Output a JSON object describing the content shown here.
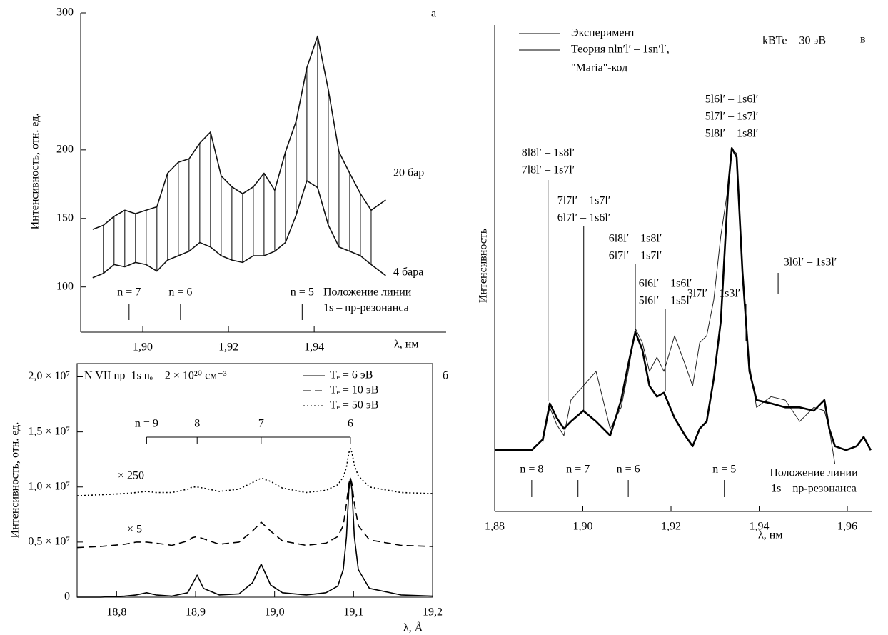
{
  "chart_data": [
    {
      "type": "line",
      "panel_label": "а",
      "ylabel": "Интенсивность, отн. ед.",
      "xlabel": "λ, нм",
      "xlim": [
        1.8855,
        1.9708
      ],
      "ylim": [
        67,
        300
      ],
      "yticks": [
        100,
        150,
        200,
        300
      ],
      "xticks": [
        {
          "value": 1.9,
          "label": "1,90"
        },
        {
          "value": 1.92,
          "label": "1,92"
        },
        {
          "value": 1.94,
          "label": "1,94"
        }
      ],
      "x": [
        1.8883,
        1.8908,
        1.8933,
        1.8958,
        1.8983,
        1.9008,
        1.9033,
        1.9058,
        1.9083,
        1.9108,
        1.9133,
        1.9158,
        1.9183,
        1.9208,
        1.9233,
        1.9258,
        1.9283,
        1.9308,
        1.9333,
        1.9358,
        1.9383,
        1.9408,
        1.9433,
        1.9458,
        1.9483,
        1.9508,
        1.9533,
        1.9567
      ],
      "series": [
        {
          "name": "20 бар",
          "color": "#111111",
          "values": [
            142,
            145,
            151.5,
            156,
            153.5,
            156,
            158.5,
            183,
            191,
            193.5,
            205,
            213,
            181,
            173,
            168,
            173,
            183,
            170.5,
            198.5,
            221,
            260,
            283,
            244,
            198.5,
            183,
            168,
            156,
            163.5
          ]
        },
        {
          "name": "4 бара",
          "color": "#111111",
          "values": [
            106.7,
            109.9,
            116.3,
            114.7,
            117.9,
            116.3,
            111.5,
            119.6,
            122.8,
            126,
            132.4,
            129.2,
            122.8,
            119.6,
            117.9,
            122.8,
            122.8,
            126,
            132.4,
            152.5,
            177.5,
            172.5,
            145.2,
            129.2,
            126,
            122.8,
            116.3,
            108.3
          ]
        }
      ],
      "markers": [
        {
          "label": "n = 7",
          "x": 1.8968
        },
        {
          "label": "n = 6",
          "x": 1.9088
        },
        {
          "label": "n = 5",
          "x": 1.9372
        }
      ],
      "marker_note": [
        "Положение линии",
        "1s – np-резонанса"
      ]
    },
    {
      "type": "line",
      "panel_label": "б",
      "title": "N VII np–1s   nₑ = 2 × 10²⁰ см⁻³",
      "ylabel": "Интенсивность, отн. ед.",
      "xlabel": "λ, Å",
      "frame": true,
      "xlim": [
        18.75,
        19.2
      ],
      "ylim": [
        0,
        21200000
      ],
      "yticks": [
        0,
        {
          "value": 5000000,
          "label": "0,5 × 10⁷"
        },
        {
          "value": 10000000,
          "label": "1,0 × 10⁷"
        },
        {
          "value": 15000000,
          "label": "1,5 × 10⁷"
        },
        {
          "value": 20000000,
          "label": "2,0 × 10⁷"
        }
      ],
      "xticks": [
        {
          "value": 18.8,
          "label": "18,8"
        },
        {
          "value": 18.9,
          "label": "18,9"
        },
        {
          "value": 19.0,
          "label": "19,0"
        },
        {
          "value": 19.1,
          "label": "19,1"
        },
        {
          "value": 19.2,
          "label": "19,2"
        }
      ],
      "x": [
        18.75,
        18.78,
        18.81,
        18.825,
        18.838,
        18.85,
        18.87,
        18.89,
        18.896,
        18.902,
        18.91,
        18.93,
        18.955,
        18.972,
        18.983,
        18.995,
        19.01,
        19.04,
        19.065,
        19.08,
        19.087,
        19.091,
        19.094,
        19.096,
        19.098,
        19.101,
        19.106,
        19.12,
        19.16,
        19.2
      ],
      "series": [
        {
          "name": "Tₑ = 6 эВ",
          "color": "#000000",
          "dash": "solid",
          "values": [
            0,
            0,
            100000,
            200000,
            400000,
            200000,
            100000,
            400000,
            1200000,
            2000000,
            800000,
            200000,
            300000,
            1300000,
            3000000,
            1100000,
            400000,
            200000,
            400000,
            1000000,
            2500000,
            5500000,
            9700000,
            10800000,
            9700000,
            5500000,
            2500000,
            800000,
            200000,
            100000
          ]
        },
        {
          "name": "Tₑ = 10 эВ",
          "color": "#000000",
          "dash": "dashed",
          "values": [
            4500000,
            4600000,
            4800000,
            5000000,
            5000000,
            4900000,
            4700000,
            5100000,
            5400000,
            5500000,
            5300000,
            4800000,
            5000000,
            6000000,
            6800000,
            6000000,
            5100000,
            4700000,
            4900000,
            5500000,
            6500000,
            8500000,
            10300000,
            10800000,
            10300000,
            8500000,
            6500000,
            5200000,
            4700000,
            4600000
          ]
        },
        {
          "name": "Tₑ = 50 эВ",
          "color": "#000000",
          "dash": "dotted",
          "values": [
            9200000,
            9300000,
            9400000,
            9500000,
            9600000,
            9500000,
            9500000,
            9800000,
            10000000,
            10000000,
            9900000,
            9600000,
            9800000,
            10400000,
            10800000,
            10500000,
            9900000,
            9500000,
            9700000,
            10200000,
            10900000,
            11800000,
            13100000,
            13500000,
            13100000,
            12000000,
            11000000,
            10000000,
            9500000,
            9400000
          ]
        }
      ],
      "annotations": [
        "× 250",
        "× 5"
      ],
      "bracket": [
        {
          "label": "n = 9",
          "x": 18.838
        },
        {
          "label": "8",
          "x": 18.902
        },
        {
          "label": "7",
          "x": 18.983
        },
        {
          "label": "6",
          "x": 19.096
        }
      ]
    },
    {
      "type": "line",
      "panel_label": "в",
      "ylabel": "Интенсивность",
      "xlabel": "λ, нм",
      "xlim": [
        1.88,
        1.9655
      ],
      "ylim": [
        0,
        100
      ],
      "xticks": [
        {
          "value": 1.88,
          "label": "1,88"
        },
        {
          "value": 1.9,
          "label": "1,90"
        },
        {
          "value": 1.92,
          "label": "1,92"
        },
        {
          "value": 1.94,
          "label": "1,94"
        },
        {
          "value": 1.96,
          "label": "1,96"
        }
      ],
      "x": [
        1.88,
        1.8884,
        1.8909,
        1.8925,
        1.8941,
        1.8957,
        1.8973,
        1.9001,
        1.903,
        1.9062,
        1.9087,
        1.9103,
        1.9119,
        1.9135,
        1.9151,
        1.9168,
        1.9184,
        1.9208,
        1.9232,
        1.9249,
        1.9265,
        1.9281,
        1.9297,
        1.9313,
        1.933,
        1.9338,
        1.9349,
        1.9362,
        1.9378,
        1.9394,
        1.9427,
        1.9459,
        1.9492,
        1.9524,
        1.9548,
        1.9559,
        1.9572,
        1.9597,
        1.9621,
        1.9637,
        1.9653
      ],
      "series": [
        {
          "name": "Эксперимент",
          "color": "#222222",
          "line_width": 1,
          "values": [
            null,
            null,
            14.1,
            21.4,
            17.8,
            15.6,
            22.9,
            25.8,
            28.8,
            17.0,
            21.4,
            28.8,
            37.6,
            34.7,
            28.8,
            31.7,
            28.8,
            36.1,
            30.2,
            25.8,
            34.7,
            36.1,
            43.5,
            56.7,
            67.0,
            74.3,
            73.6,
            47.9,
            30.2,
            21.4,
            23.6,
            22.9,
            18.5,
            21.4,
            20.7,
            17.0,
            9.7,
            null,
            null,
            null,
            null
          ]
        },
        {
          "name": "Теория nln′l′ – 1sn′l′,",
          "color": "#000000",
          "line_width": 2.6,
          "values": [
            12.6,
            12.6,
            14.8,
            22.2,
            19.2,
            17.0,
            18.5,
            20.7,
            18.5,
            15.6,
            22.9,
            30.2,
            36.9,
            33.2,
            25.8,
            23.6,
            24.4,
            19.2,
            15.6,
            13.4,
            17.0,
            18.5,
            27.3,
            39.1,
            67.0,
            74.7,
            72.8,
            49.3,
            28.8,
            22.9,
            22.2,
            21.4,
            21.4,
            20.7,
            22.9,
            17.0,
            13.4,
            12.6,
            13.4,
            15.3,
            12.6
          ]
        }
      ],
      "legend_note": "\"Maria\"-код",
      "note": "kBTe = 30 эВ",
      "markers": [
        {
          "label": "n = 8",
          "x": 1.8884
        },
        {
          "label": "n = 7",
          "x": 1.8989
        },
        {
          "label": "n = 6",
          "x": 1.9103
        },
        {
          "label": "n = 5",
          "x": 1.9321
        }
      ],
      "marker_note": [
        "Положение линии",
        "1s – np-резонанса"
      ],
      "transitions": [
        {
          "lines": [
            "8l8l′ – 1s8l′",
            "7l8l′ – 1s7l′"
          ],
          "x": 1.8921
        },
        {
          "lines": [
            "7l7l′ – 1s7l′",
            "6l7l′ – 1s6l′"
          ],
          "x": 1.9002
        },
        {
          "lines": [
            "6l8l′ – 1s8l′",
            "6l7l′ – 1s7l′"
          ],
          "x": 1.9119
        },
        {
          "lines": [
            "6l6l′ – 1s6l′",
            "5l6l′ – 1s5l′"
          ],
          "x": 1.9187
        },
        {
          "lines": [
            "5l6l′ – 1s6l′",
            "5l7l′ – 1s7l′",
            "5l8l′ – 1s8l′"
          ]
        },
        {
          "lines": [
            "3l7l′ – 1s3l′"
          ],
          "x": 1.937
        },
        {
          "lines": [
            "3l6l′ – 1s3l′"
          ],
          "x": 1.9443
        }
      ]
    }
  ]
}
